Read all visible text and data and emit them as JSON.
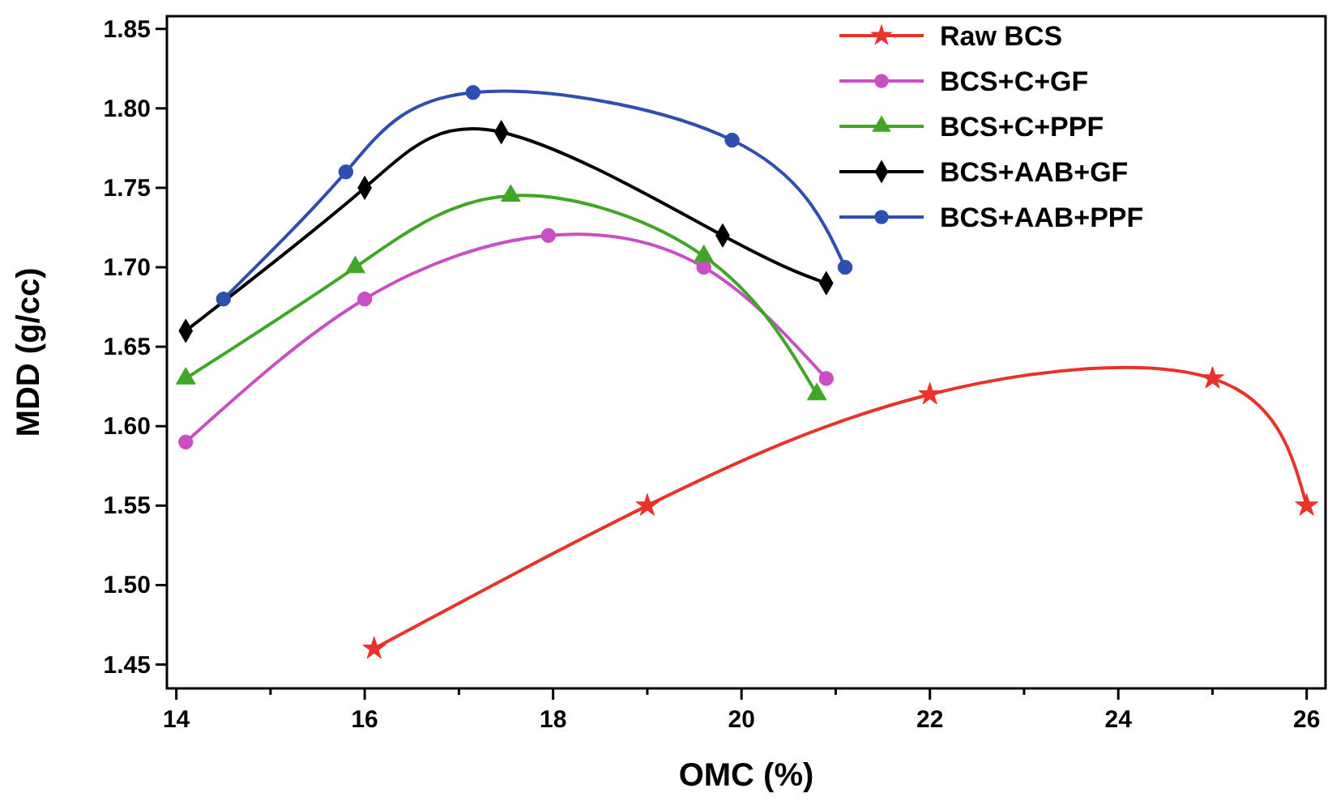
{
  "chart_data": {
    "type": "line",
    "xlabel": "OMC (%)",
    "ylabel": "MDD (g/cc)",
    "xlim": [
      13.9,
      26.2
    ],
    "xticks": [
      14,
      {
        "value": 15,
        "label": null
      },
      16,
      {
        "value": 17,
        "label": null
      },
      18,
      {
        "value": 19,
        "label": null
      },
      20,
      {
        "value": 21,
        "label": null
      },
      22,
      {
        "value": 23,
        "label": null
      },
      24,
      {
        "value": 25,
        "label": null
      },
      26
    ],
    "ylim": [
      1.435,
      1.858
    ],
    "yticks": [
      1.45,
      {
        "value": 1.5,
        "label": "1.50"
      },
      1.55,
      {
        "value": 1.6,
        "label": "1.60"
      },
      1.65,
      {
        "value": 1.7,
        "label": "1.70"
      },
      1.75,
      {
        "value": 1.8,
        "label": "1.80"
      },
      1.85
    ],
    "legend": "top right",
    "grid": false,
    "line_style": "solid",
    "series": [
      {
        "name": "Raw BCS",
        "color": "#e8332a",
        "marker": "star",
        "x": [
          16.1,
          19,
          22,
          25,
          26
        ],
        "values": [
          1.46,
          1.55,
          1.62,
          1.63,
          1.55
        ]
      },
      {
        "name": "BCS+C+GF",
        "color": "#c94fc4",
        "marker": "circle",
        "x": [
          14.1,
          16,
          17.95,
          19.6,
          20.9
        ],
        "values": [
          1.59,
          1.68,
          1.72,
          1.7,
          1.63
        ]
      },
      {
        "name": "BCS+C+PPF",
        "color": "#3fa626",
        "marker": "triangle",
        "x": [
          14.1,
          15.9,
          17.55,
          19.6,
          20.8
        ],
        "values": [
          1.63,
          1.7,
          1.745,
          1.707,
          1.62
        ]
      },
      {
        "name": "BCS+AAB+GF",
        "color": "#000000",
        "marker": "diamond",
        "x": [
          14.1,
          16,
          17.45,
          19.8,
          20.9
        ],
        "values": [
          1.66,
          1.75,
          1.785,
          1.72,
          1.69
        ]
      },
      {
        "name": "BCS+AAB+PPF",
        "color": "#2e4fb0",
        "marker": "circle",
        "x": [
          14.5,
          15.8,
          17.15,
          19.9,
          21.1
        ],
        "values": [
          1.68,
          1.76,
          1.81,
          1.78,
          1.7
        ]
      }
    ]
  }
}
